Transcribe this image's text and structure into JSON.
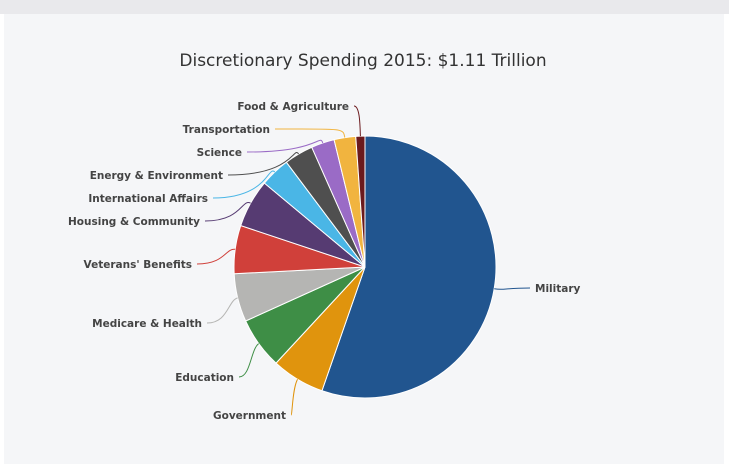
{
  "chart_data": {
    "type": "pie",
    "title": "Discretionary Spending 2015: $1.11 Trillion",
    "slices": [
      {
        "label": "Military",
        "value": 54.0,
        "color": "#21558f"
      },
      {
        "label": "Government",
        "value": 6.4,
        "color": "#e0940d"
      },
      {
        "label": "Education",
        "value": 6.2,
        "color": "#3e8e46"
      },
      {
        "label": "Medicare & Health",
        "value": 5.8,
        "color": "#b5b5b3"
      },
      {
        "label": "Veterans' Benefits",
        "value": 5.8,
        "color": "#d0403a"
      },
      {
        "label": "Housing & Community",
        "value": 5.8,
        "color": "#563b72"
      },
      {
        "label": "International Affairs",
        "value": 3.6,
        "color": "#4ab6e6"
      },
      {
        "label": "Energy & Environment",
        "value": 3.5,
        "color": "#4f4f4f"
      },
      {
        "label": "Science",
        "value": 2.8,
        "color": "#9a6bc6"
      },
      {
        "label": "Transportation",
        "value": 2.6,
        "color": "#f1b43f"
      },
      {
        "label": "Food & Agriculture",
        "value": 1.1,
        "color": "#6b1a1d"
      }
    ],
    "legend": "none",
    "start_angle": "12 o'clock, clockwise"
  }
}
